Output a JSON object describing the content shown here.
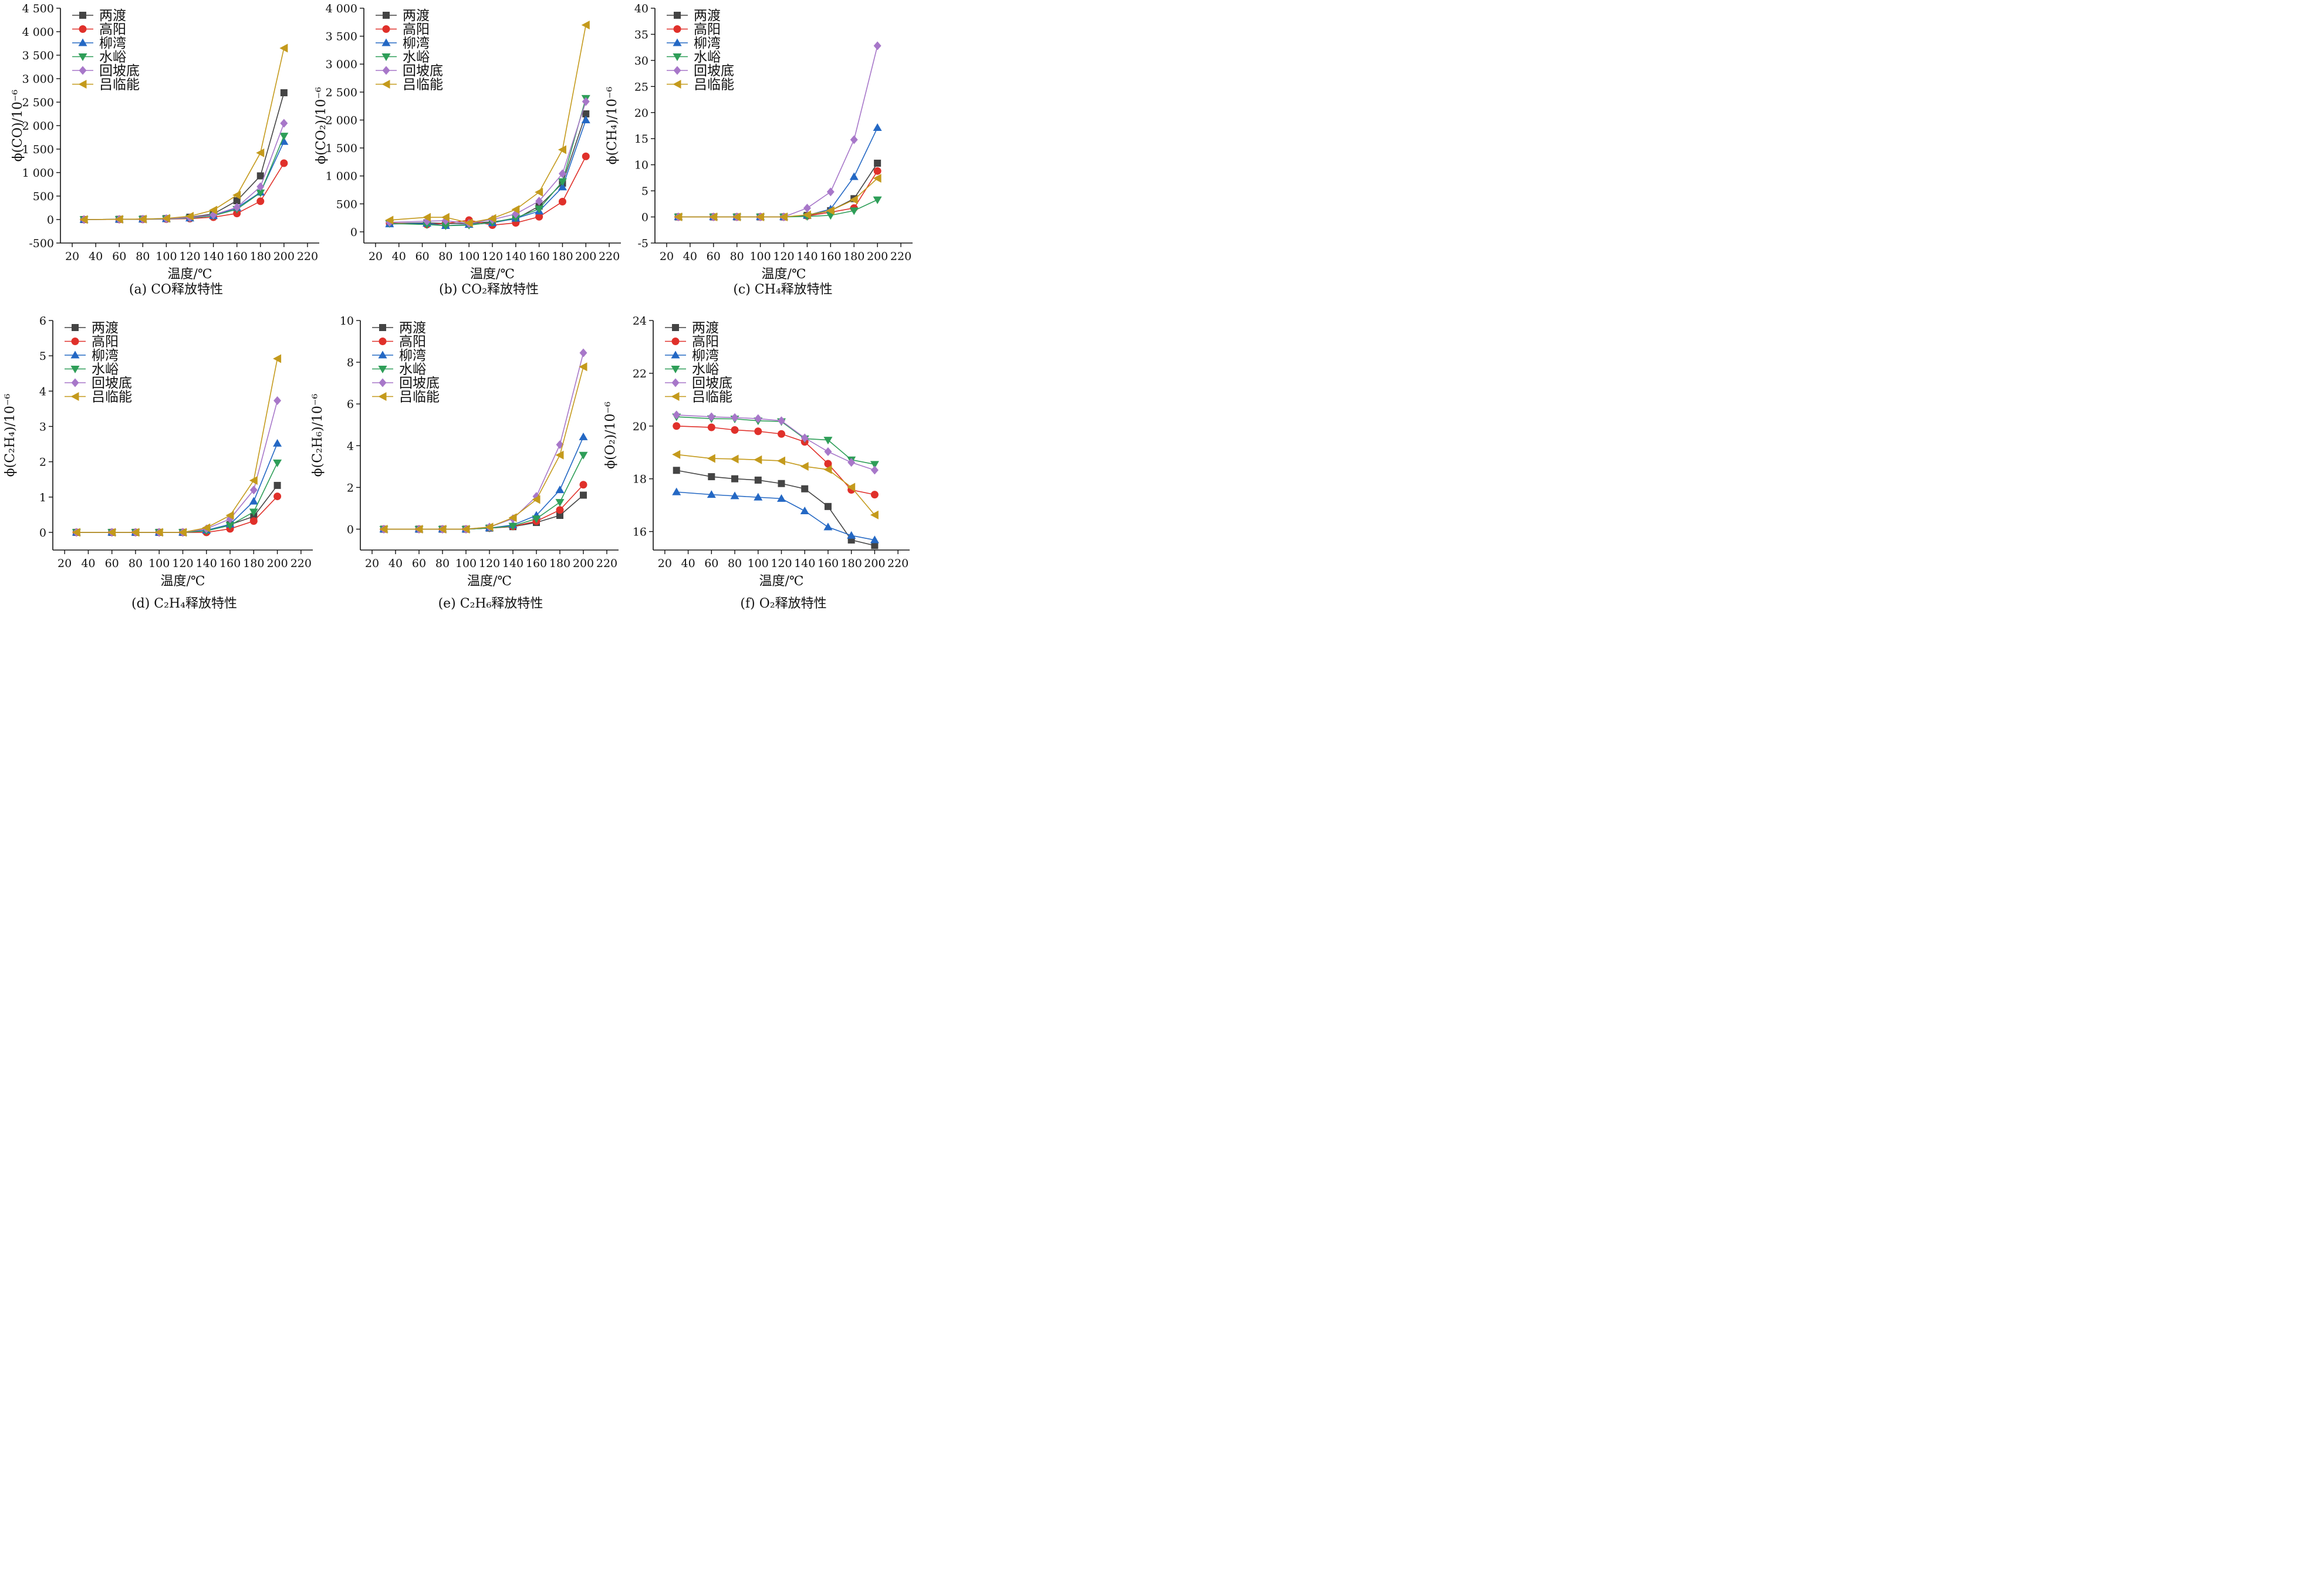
{
  "series_names": [
    "两渡",
    "高阳",
    "柳湾",
    "水峪",
    "回坡底",
    "吕临能"
  ],
  "series_colors": [
    "#444444",
    "#e0302a",
    "#2468c4",
    "#2e9e58",
    "#a777c9",
    "#c49a1c"
  ],
  "series_markers": [
    "square",
    "circle",
    "triangle-up",
    "triangle-down",
    "diamond",
    "triangle-left"
  ],
  "chart_data": [
    {
      "type": "line",
      "caption": "(a) CO释放特性",
      "xlabel": "温度/℃",
      "ylabel": "ϕ(CO)/10⁻⁶",
      "xlim": [
        10,
        230
      ],
      "ylim": [
        -500,
        4500
      ],
      "xticks": [
        20,
        40,
        60,
        80,
        100,
        120,
        140,
        160,
        180,
        200,
        220
      ],
      "yticks": [
        -500,
        0,
        500,
        1000,
        1500,
        2000,
        2500,
        3000,
        3500,
        4000,
        4500
      ],
      "ytick_labels": [
        "-500",
        "0",
        "500",
        "1 000",
        "1 500",
        "2 000",
        "2 500",
        "3 000",
        "3 500",
        "4 000",
        "4 500"
      ],
      "x": [
        30,
        60,
        80,
        100,
        120,
        140,
        160,
        180,
        200
      ],
      "series": [
        {
          "name": "两渡",
          "values": [
            0,
            5,
            10,
            20,
            50,
            120,
            400,
            930,
            2700
          ]
        },
        {
          "name": "高阳",
          "values": [
            0,
            3,
            5,
            10,
            20,
            50,
            130,
            390,
            1200
          ]
        },
        {
          "name": "柳湾",
          "values": [
            0,
            5,
            8,
            15,
            30,
            80,
            250,
            580,
            1660
          ]
        },
        {
          "name": "水峪",
          "values": [
            0,
            5,
            8,
            15,
            30,
            80,
            220,
            570,
            1780
          ]
        },
        {
          "name": "回坡底",
          "values": [
            0,
            5,
            10,
            20,
            40,
            100,
            260,
            700,
            2050
          ]
        },
        {
          "name": "吕临能",
          "values": [
            0,
            5,
            10,
            25,
            70,
            200,
            520,
            1420,
            3650
          ]
        }
      ]
    },
    {
      "type": "line",
      "caption": "(b) CO₂释放特性",
      "xlabel": "温度/℃",
      "ylabel": "ϕ(CO₂)/10⁻⁶",
      "xlim": [
        10,
        230
      ],
      "ylim": [
        -200,
        4000
      ],
      "xticks": [
        20,
        40,
        60,
        80,
        100,
        120,
        140,
        160,
        180,
        200,
        220
      ],
      "yticks": [
        0,
        500,
        1000,
        1500,
        2000,
        2500,
        3000,
        3500,
        4000
      ],
      "ytick_labels": [
        "0",
        "500",
        "1 000",
        "1 500",
        "2 000",
        "2 500",
        "3 000",
        "3 500",
        "4 000"
      ],
      "x": [
        32,
        64,
        80,
        100,
        120,
        140,
        160,
        180,
        200
      ],
      "series": [
        {
          "name": "两渡",
          "values": [
            150,
            160,
            150,
            150,
            180,
            230,
            460,
            870,
            2110
          ]
        },
        {
          "name": "高阳",
          "values": [
            160,
            130,
            150,
            210,
            120,
            160,
            270,
            540,
            1350
          ]
        },
        {
          "name": "柳湾",
          "values": [
            140,
            150,
            110,
            130,
            160,
            240,
            370,
            800,
            2000
          ]
        },
        {
          "name": "水峪",
          "values": [
            150,
            130,
            110,
            120,
            170,
            250,
            410,
            900,
            2390
          ]
        },
        {
          "name": "回坡底",
          "values": [
            170,
            190,
            200,
            150,
            220,
            320,
            550,
            1040,
            2330
          ]
        },
        {
          "name": "吕临能",
          "values": [
            210,
            260,
            260,
            160,
            240,
            400,
            710,
            1470,
            3700
          ]
        }
      ]
    },
    {
      "type": "line",
      "caption": "(c) CH₄释放特性",
      "xlabel": "温度/℃",
      "ylabel": "ϕ(CH₄)/10⁻⁶",
      "xlim": [
        10,
        230
      ],
      "ylim": [
        -5,
        40
      ],
      "xticks": [
        20,
        40,
        60,
        80,
        100,
        120,
        140,
        160,
        180,
        200,
        220
      ],
      "yticks": [
        -5,
        0,
        5,
        10,
        15,
        20,
        25,
        30,
        35,
        40
      ],
      "ytick_labels": [
        "-5",
        "0",
        "5",
        "10",
        "15",
        "20",
        "25",
        "30",
        "35",
        "40"
      ],
      "x": [
        30,
        60,
        80,
        100,
        120,
        140,
        160,
        180,
        200
      ],
      "series": [
        {
          "name": "两渡",
          "values": [
            0,
            0,
            0,
            0,
            0,
            0.3,
            1.2,
            3.5,
            10.3
          ]
        },
        {
          "name": "高阳",
          "values": [
            0,
            0,
            0,
            0,
            0,
            0.2,
            0.9,
            1.7,
            8.8
          ]
        },
        {
          "name": "柳湾",
          "values": [
            0,
            0,
            0,
            0,
            0,
            0.3,
            1.5,
            7.7,
            17.1
          ]
        },
        {
          "name": "水峪",
          "values": [
            0,
            0,
            0,
            0,
            0,
            0.1,
            0.3,
            1.2,
            3.3
          ]
        },
        {
          "name": "回坡底",
          "values": [
            0,
            0,
            0,
            0,
            0,
            1.7,
            4.8,
            14.8,
            32.8
          ]
        },
        {
          "name": "吕临能",
          "values": [
            0,
            0,
            0,
            0,
            0,
            0.4,
            1.2,
            3.3,
            7.4
          ]
        }
      ]
    },
    {
      "type": "line",
      "caption": "(d) C₂H₄释放特性",
      "xlabel": "温度/℃",
      "ylabel": "ϕ(C₂H₄)/10⁻⁶",
      "xlim": [
        10,
        230
      ],
      "ylim": [
        -0.5,
        6
      ],
      "xticks": [
        20,
        40,
        60,
        80,
        100,
        120,
        140,
        160,
        180,
        200,
        220
      ],
      "yticks": [
        0,
        1,
        2,
        3,
        4,
        5,
        6
      ],
      "ytick_labels": [
        "0",
        "1",
        "2",
        "3",
        "4",
        "5",
        "6"
      ],
      "x": [
        30,
        60,
        80,
        100,
        120,
        140,
        160,
        180,
        200
      ],
      "series": [
        {
          "name": "两渡",
          "values": [
            0,
            0,
            0,
            0,
            0,
            0.05,
            0.22,
            0.45,
            1.33
          ]
        },
        {
          "name": "高阳",
          "values": [
            0,
            0,
            0,
            0,
            0,
            0,
            0.1,
            0.32,
            1.02
          ]
        },
        {
          "name": "柳湾",
          "values": [
            0,
            0,
            0,
            0,
            0,
            0.06,
            0.23,
            0.88,
            2.52
          ]
        },
        {
          "name": "水峪",
          "values": [
            0,
            0,
            0,
            0,
            0,
            0.04,
            0.2,
            0.58,
            1.97
          ]
        },
        {
          "name": "回坡底",
          "values": [
            0,
            0,
            0,
            0,
            0,
            0.1,
            0.38,
            1.2,
            3.73
          ]
        },
        {
          "name": "吕临能",
          "values": [
            0,
            0,
            0,
            0,
            0,
            0.13,
            0.48,
            1.47,
            4.92
          ]
        }
      ]
    },
    {
      "type": "line",
      "caption": "(e) C₂H₆释放特性",
      "xlabel": "温度/℃",
      "ylabel": "ϕ(C₂H₆)/10⁻⁶",
      "xlim": [
        10,
        230
      ],
      "ylim": [
        -1,
        10
      ],
      "xticks": [
        20,
        40,
        60,
        80,
        100,
        120,
        140,
        160,
        180,
        200,
        220
      ],
      "yticks": [
        0,
        2,
        4,
        6,
        8,
        10
      ],
      "ytick_labels": [
        "0",
        "2",
        "4",
        "6",
        "8",
        "10"
      ],
      "x": [
        30,
        60,
        80,
        100,
        120,
        140,
        160,
        180,
        200
      ],
      "series": [
        {
          "name": "两渡",
          "values": [
            0,
            0,
            0,
            0,
            0.05,
            0.12,
            0.32,
            0.66,
            1.63
          ]
        },
        {
          "name": "高阳",
          "values": [
            0,
            0,
            0,
            0,
            0.05,
            0.13,
            0.38,
            0.92,
            2.13
          ]
        },
        {
          "name": "柳湾",
          "values": [
            0,
            0,
            0,
            0,
            0.05,
            0.2,
            0.66,
            1.88,
            4.42
          ]
        },
        {
          "name": "水峪",
          "values": [
            0,
            0,
            0,
            0,
            0.05,
            0.15,
            0.5,
            1.29,
            3.55
          ]
        },
        {
          "name": "回坡底",
          "values": [
            0,
            0,
            0,
            0,
            0.1,
            0.5,
            1.57,
            4.05,
            8.45
          ]
        },
        {
          "name": "吕临能",
          "values": [
            0,
            0,
            0,
            0,
            0.1,
            0.55,
            1.42,
            3.55,
            7.78
          ]
        }
      ]
    },
    {
      "type": "line",
      "caption": "(f) O₂释放特性",
      "xlabel": "温度/℃",
      "ylabel": "ϕ(O₂)/10⁻⁶",
      "xlim": [
        10,
        230
      ],
      "ylim": [
        15.3,
        24
      ],
      "xticks": [
        20,
        40,
        60,
        80,
        100,
        120,
        140,
        160,
        180,
        200,
        220
      ],
      "yticks": [
        16,
        18,
        20,
        22,
        24
      ],
      "ytick_labels": [
        "16",
        "18",
        "20",
        "22",
        "24"
      ],
      "x": [
        30,
        60,
        80,
        100,
        120,
        140,
        160,
        180,
        200
      ],
      "series": [
        {
          "name": "两渡",
          "values": [
            18.32,
            18.08,
            18.0,
            17.95,
            17.82,
            17.62,
            16.95,
            15.68,
            15.47
          ]
        },
        {
          "name": "高阳",
          "values": [
            20.0,
            19.95,
            19.85,
            19.8,
            19.7,
            19.4,
            18.57,
            17.58,
            17.4
          ]
        },
        {
          "name": "柳湾",
          "values": [
            17.5,
            17.4,
            17.35,
            17.3,
            17.25,
            16.78,
            16.17,
            15.85,
            15.68
          ]
        },
        {
          "name": "水峪",
          "values": [
            20.35,
            20.28,
            20.27,
            20.2,
            20.17,
            19.52,
            19.47,
            18.72,
            18.55
          ]
        },
        {
          "name": "回坡底",
          "values": [
            20.42,
            20.35,
            20.32,
            20.28,
            20.2,
            19.55,
            19.03,
            18.62,
            18.33
          ]
        },
        {
          "name": "吕临能",
          "values": [
            18.92,
            18.77,
            18.75,
            18.72,
            18.68,
            18.47,
            18.35,
            17.68,
            16.63
          ]
        }
      ]
    }
  ]
}
